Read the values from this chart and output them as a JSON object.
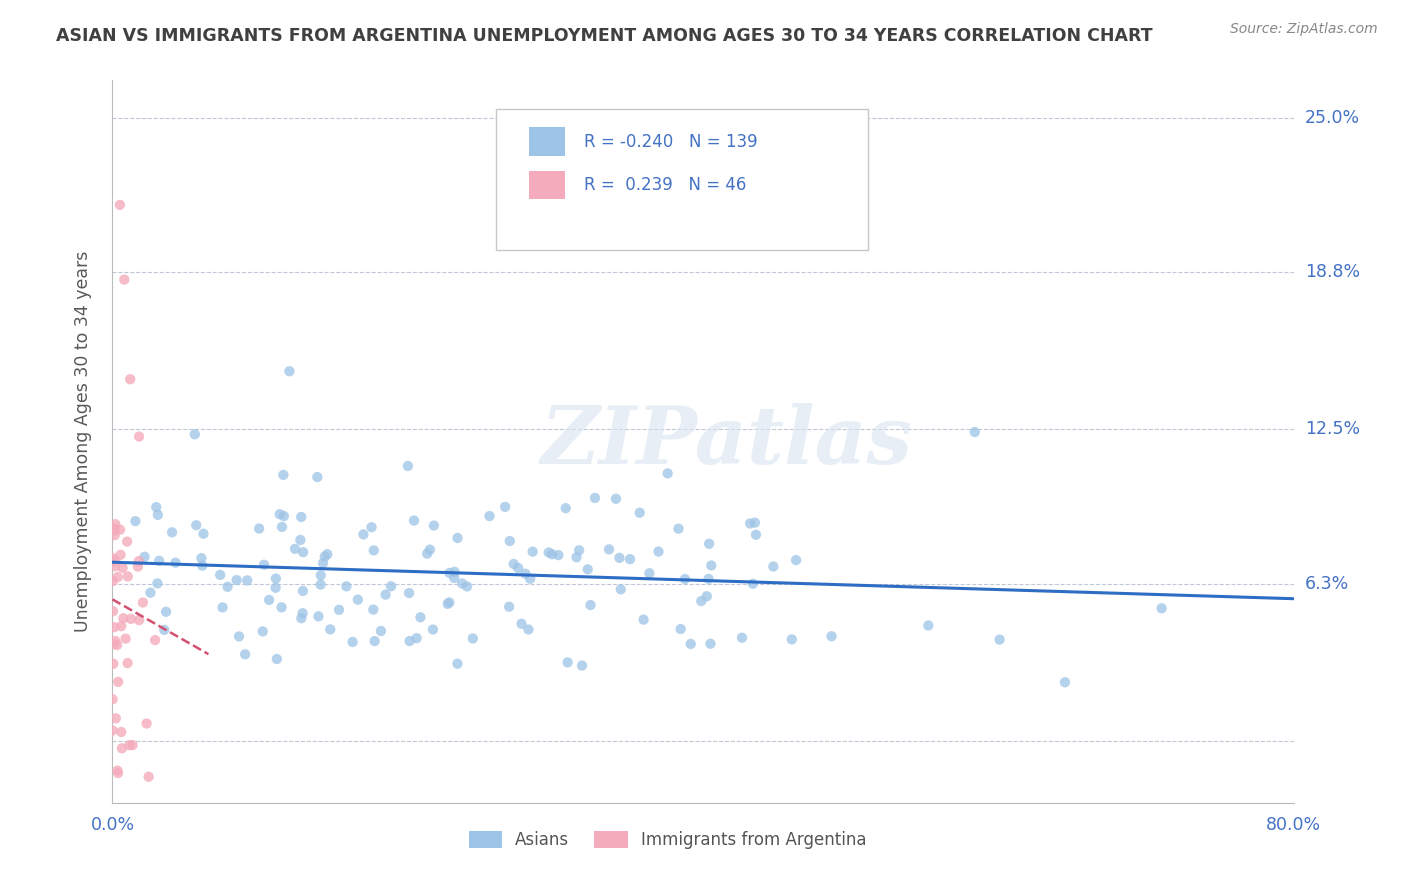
{
  "title": "ASIAN VS IMMIGRANTS FROM ARGENTINA UNEMPLOYMENT AMONG AGES 30 TO 34 YEARS CORRELATION CHART",
  "source": "Source: ZipAtlas.com",
  "ylabel": "Unemployment Among Ages 30 to 34 years",
  "xlim": [
    0.0,
    0.8
  ],
  "ylim": [
    -0.025,
    0.265
  ],
  "ytick_vals": [
    0.0,
    0.063,
    0.125,
    0.188,
    0.25
  ],
  "ytick_labels": [
    "",
    "6.3%",
    "12.5%",
    "18.8%",
    "25.0%"
  ],
  "legend_r_asian": "-0.240",
  "legend_n_asian": "139",
  "legend_r_arg": "0.239",
  "legend_n_arg": "46",
  "asian_color": "#9DC3E6",
  "arg_color": "#F4ABBB",
  "trend_asian_color": "#2E6DC4",
  "trend_arg_color": "#D45070",
  "title_color": "#404040",
  "tick_label_color": "#4472C4",
  "ylabel_color": "#595959",
  "background_color": "#FFFFFF",
  "grid_color": "#C0C8D8",
  "source_color": "#888888"
}
